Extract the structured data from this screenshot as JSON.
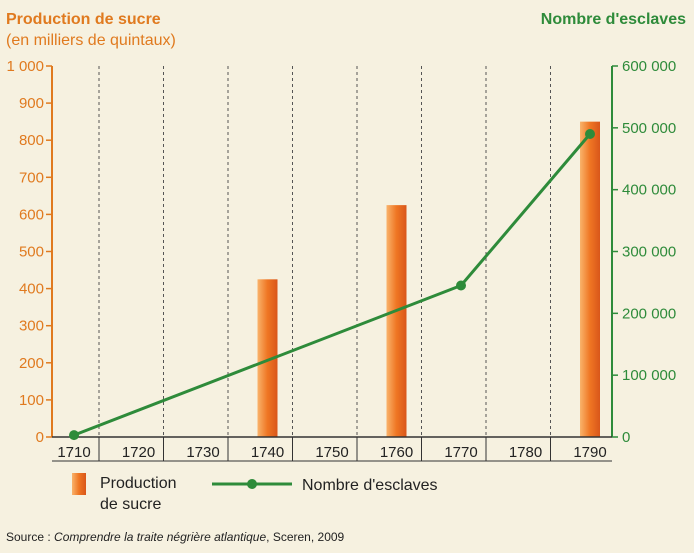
{
  "chart_data": {
    "type": "bar+line",
    "left_axis_title_line1": "Production de sucre",
    "left_axis_title_line2": "(en milliers de quintaux)",
    "right_axis_title": "Nombre d'esclaves",
    "x_ticks": [
      "1710",
      "1720",
      "1730",
      "1740",
      "1750",
      "1760",
      "1770",
      "1780",
      "1790"
    ],
    "left_ticks": [
      "0",
      "100",
      "200",
      "300",
      "400",
      "500",
      "600",
      "700",
      "800",
      "900",
      "1 000"
    ],
    "right_ticks": [
      "0",
      "100 000",
      "200 000",
      "300 000",
      "400 000",
      "500 000",
      "600 000"
    ],
    "ylim_left": [
      0,
      1000
    ],
    "ylim_right": [
      0,
      600000
    ],
    "xlim": [
      1710,
      1790
    ],
    "series": [
      {
        "name": "Production de sucre",
        "type": "bar",
        "axis": "left",
        "color": "#f07c2a",
        "x": [
          1740,
          1760,
          1790
        ],
        "values": [
          425,
          625,
          850
        ]
      },
      {
        "name": "Nombre d'esclaves",
        "type": "line",
        "axis": "right",
        "color": "#2e8b3a",
        "x": [
          1710,
          1770,
          1790
        ],
        "values": [
          3000,
          245000,
          490000
        ]
      }
    ],
    "legend": {
      "bar_label_line1": "Production",
      "bar_label_line2": "de sucre",
      "line_label": "Nombre d'esclaves"
    },
    "grid": "vertical-dashed"
  },
  "source": {
    "prefix": "Source : ",
    "title": "Comprendre la traite négrière atlantique",
    "suffix": ", Sceren, 2009"
  }
}
